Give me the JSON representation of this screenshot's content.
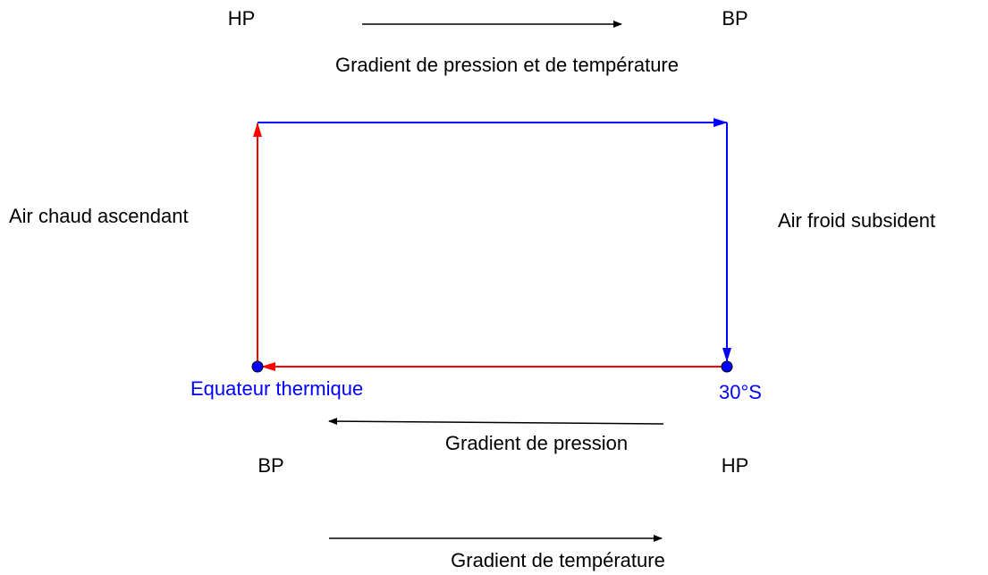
{
  "top": {
    "left_label": "HP",
    "right_label": "BP",
    "caption": "Gradient de pression et de température"
  },
  "cell": {
    "left_label": "Air chaud ascendant",
    "right_label": "Air froid subsident",
    "left_point": "Equateur thermique",
    "right_point": "30°S"
  },
  "bottom": {
    "pressure_caption": "Gradient de pression",
    "left_label": "BP",
    "right_label": "HP",
    "temperature_caption": "Gradient de température"
  }
}
